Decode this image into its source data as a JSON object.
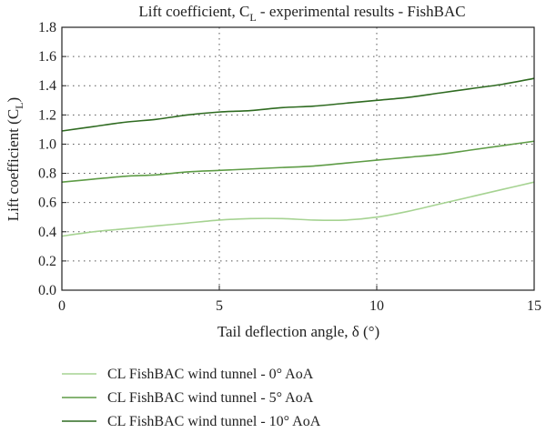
{
  "chart_data": {
    "type": "line",
    "title_main": "Lift coefficient, C",
    "title_sub": "L",
    "title_rest": " - experimental results - FishBAC",
    "xlabel": "Tail deflection angle, δ (°)",
    "ylabel_main": "Lift coefficient (C",
    "ylabel_sub": "L",
    "ylabel_end": ")",
    "xlim": [
      0,
      15
    ],
    "ylim": [
      0,
      1.8
    ],
    "xticks": [
      "0",
      "5",
      "10",
      "15"
    ],
    "yticks": [
      "0.0",
      "0.2",
      "0.4",
      "0.6",
      "0.8",
      "1.0",
      "1.2",
      "1.4",
      "1.6",
      "1.8"
    ],
    "grid": true,
    "legend_position": "bottom",
    "series": [
      {
        "name": "CL FishBAC wind tunnel - 0° AoA",
        "color": "#a6d392",
        "x": [
          0,
          1,
          2,
          3,
          4,
          5,
          6,
          7,
          8,
          9,
          10,
          11,
          12,
          13,
          14,
          15
        ],
        "y": [
          0.37,
          0.4,
          0.42,
          0.44,
          0.46,
          0.48,
          0.49,
          0.49,
          0.48,
          0.48,
          0.5,
          0.54,
          0.59,
          0.64,
          0.69,
          0.74
        ]
      },
      {
        "name": "CL FishBAC wind tunnel - 5° AoA",
        "color": "#5e9c46",
        "x": [
          0,
          1,
          2,
          3,
          4,
          5,
          6,
          7,
          8,
          9,
          10,
          11,
          12,
          13,
          14,
          15
        ],
        "y": [
          0.74,
          0.76,
          0.78,
          0.79,
          0.81,
          0.82,
          0.83,
          0.84,
          0.85,
          0.87,
          0.89,
          0.91,
          0.93,
          0.96,
          0.99,
          1.02
        ]
      },
      {
        "name": "CL FishBAC wind tunnel - 10° AoA",
        "color": "#2f6b21",
        "x": [
          0,
          1,
          2,
          3,
          4,
          5,
          6,
          7,
          8,
          9,
          10,
          11,
          12,
          13,
          14,
          15
        ],
        "y": [
          1.09,
          1.12,
          1.15,
          1.17,
          1.2,
          1.22,
          1.23,
          1.25,
          1.26,
          1.28,
          1.3,
          1.32,
          1.35,
          1.38,
          1.41,
          1.45
        ]
      }
    ]
  }
}
